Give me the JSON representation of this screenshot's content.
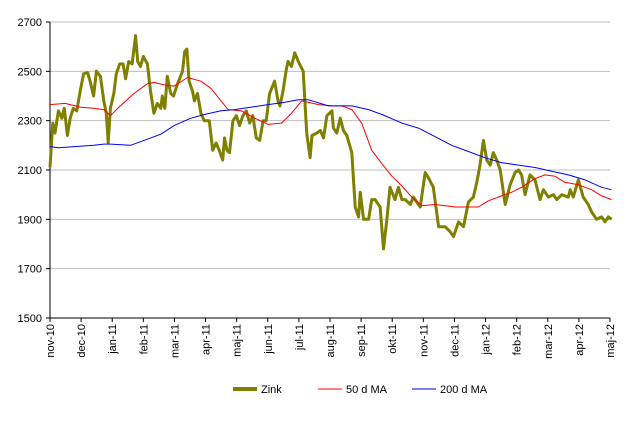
{
  "chart_data": {
    "type": "line",
    "title": "",
    "xlabel": "",
    "ylabel": "",
    "ylim": [
      1500,
      2700
    ],
    "yticks": [
      1500,
      1700,
      1900,
      2100,
      2300,
      2500,
      2700
    ],
    "grid": "horizontal",
    "legend_position": "bottom",
    "x_unit": "month index (0 = nov-10)",
    "categories": [
      "nov-10",
      "dec-10",
      "jan-11",
      "feb-11",
      "mar-11",
      "apr-11",
      "maj-11",
      "jun-11",
      "jul-11",
      "aug-11",
      "sep-11",
      "okt-11",
      "nov-11",
      "dec-11",
      "jan-12",
      "feb-12",
      "mar-12",
      "apr-12",
      "maj-12"
    ],
    "series": [
      {
        "name": "Zink",
        "color": "#808000",
        "points": [
          [
            0,
            2110
          ],
          [
            0.09,
            2290
          ],
          [
            0.16,
            2250
          ],
          [
            0.27,
            2340
          ],
          [
            0.38,
            2310
          ],
          [
            0.46,
            2350
          ],
          [
            0.56,
            2240
          ],
          [
            0.65,
            2310
          ],
          [
            0.75,
            2350
          ],
          [
            0.86,
            2340
          ],
          [
            0.97,
            2420
          ],
          [
            1.08,
            2490
          ],
          [
            1.21,
            2495
          ],
          [
            1.29,
            2460
          ],
          [
            1.4,
            2400
          ],
          [
            1.49,
            2500
          ],
          [
            1.62,
            2480
          ],
          [
            1.73,
            2380
          ],
          [
            1.81,
            2330
          ],
          [
            1.87,
            2210
          ],
          [
            1.94,
            2350
          ],
          [
            2.05,
            2410
          ],
          [
            2.13,
            2490
          ],
          [
            2.24,
            2530
          ],
          [
            2.35,
            2530
          ],
          [
            2.43,
            2470
          ],
          [
            2.53,
            2540
          ],
          [
            2.64,
            2530
          ],
          [
            2.75,
            2645
          ],
          [
            2.82,
            2540
          ],
          [
            2.91,
            2520
          ],
          [
            3.0,
            2560
          ],
          [
            3.13,
            2530
          ],
          [
            3.23,
            2420
          ],
          [
            3.34,
            2330
          ],
          [
            3.45,
            2370
          ],
          [
            3.56,
            2350
          ],
          [
            3.61,
            2400
          ],
          [
            3.69,
            2350
          ],
          [
            3.77,
            2480
          ],
          [
            3.88,
            2410
          ],
          [
            3.97,
            2400
          ],
          [
            4.1,
            2450
          ],
          [
            4.26,
            2500
          ],
          [
            4.33,
            2580
          ],
          [
            4.4,
            2590
          ],
          [
            4.47,
            2460
          ],
          [
            4.58,
            2420
          ],
          [
            4.64,
            2380
          ],
          [
            4.74,
            2410
          ],
          [
            4.85,
            2330
          ],
          [
            4.96,
            2300
          ],
          [
            5.12,
            2300
          ],
          [
            5.23,
            2180
          ],
          [
            5.34,
            2210
          ],
          [
            5.44,
            2180
          ],
          [
            5.55,
            2140
          ],
          [
            5.61,
            2230
          ],
          [
            5.69,
            2180
          ],
          [
            5.77,
            2170
          ],
          [
            5.88,
            2300
          ],
          [
            5.99,
            2320
          ],
          [
            6.09,
            2280
          ],
          [
            6.2,
            2320
          ],
          [
            6.31,
            2340
          ],
          [
            6.42,
            2290
          ],
          [
            6.52,
            2320
          ],
          [
            6.63,
            2230
          ],
          [
            6.74,
            2220
          ],
          [
            6.85,
            2300
          ],
          [
            6.95,
            2300
          ],
          [
            7.06,
            2410
          ],
          [
            7.22,
            2460
          ],
          [
            7.33,
            2380
          ],
          [
            7.39,
            2360
          ],
          [
            7.49,
            2420
          ],
          [
            7.6,
            2510
          ],
          [
            7.65,
            2540
          ],
          [
            7.76,
            2520
          ],
          [
            7.87,
            2575
          ],
          [
            7.98,
            2540
          ],
          [
            8.14,
            2500
          ],
          [
            8.25,
            2250
          ],
          [
            8.36,
            2150
          ],
          [
            8.42,
            2240
          ],
          [
            8.58,
            2250
          ],
          [
            8.69,
            2260
          ],
          [
            8.79,
            2230
          ],
          [
            8.9,
            2320
          ],
          [
            9.06,
            2340
          ],
          [
            9.11,
            2270
          ],
          [
            9.22,
            2250
          ],
          [
            9.33,
            2310
          ],
          [
            9.43,
            2260
          ],
          [
            9.54,
            2240
          ],
          [
            9.7,
            2170
          ],
          [
            9.81,
            1950
          ],
          [
            9.92,
            1910
          ],
          [
            9.97,
            2010
          ],
          [
            10.08,
            1900
          ],
          [
            10.24,
            1900
          ],
          [
            10.34,
            1980
          ],
          [
            10.45,
            1980
          ],
          [
            10.61,
            1950
          ],
          [
            10.72,
            1780
          ],
          [
            10.83,
            1900
          ],
          [
            10.93,
            2030
          ],
          [
            11.09,
            1980
          ],
          [
            11.2,
            2030
          ],
          [
            11.31,
            1980
          ],
          [
            11.42,
            1980
          ],
          [
            11.58,
            1960
          ],
          [
            11.68,
            1990
          ],
          [
            11.79,
            1970
          ],
          [
            11.9,
            1950
          ],
          [
            12.06,
            2090
          ],
          [
            12.16,
            2070
          ],
          [
            12.32,
            2030
          ],
          [
            12.49,
            1870
          ],
          [
            12.7,
            1870
          ],
          [
            12.86,
            1850
          ],
          [
            12.97,
            1830
          ],
          [
            13.13,
            1890
          ],
          [
            13.29,
            1870
          ],
          [
            13.45,
            1970
          ],
          [
            13.61,
            1990
          ],
          [
            13.72,
            2050
          ],
          [
            13.82,
            2120
          ],
          [
            13.93,
            2220
          ],
          [
            14.04,
            2140
          ],
          [
            14.15,
            2120
          ],
          [
            14.25,
            2170
          ],
          [
            14.36,
            2140
          ],
          [
            14.47,
            2100
          ],
          [
            14.63,
            1960
          ],
          [
            14.79,
            2040
          ],
          [
            14.95,
            2090
          ],
          [
            15.06,
            2100
          ],
          [
            15.16,
            2080
          ],
          [
            15.27,
            2000
          ],
          [
            15.43,
            2080
          ],
          [
            15.59,
            2060
          ],
          [
            15.75,
            1980
          ],
          [
            15.86,
            2020
          ],
          [
            16.02,
            1990
          ],
          [
            16.18,
            2000
          ],
          [
            16.29,
            1980
          ],
          [
            16.45,
            2000
          ],
          [
            16.66,
            1990
          ],
          [
            16.72,
            2020
          ],
          [
            16.82,
            1990
          ],
          [
            16.98,
            2060
          ],
          [
            17.14,
            1990
          ],
          [
            17.3,
            1960
          ],
          [
            17.41,
            1930
          ],
          [
            17.57,
            1900
          ],
          [
            17.73,
            1910
          ],
          [
            17.84,
            1890
          ],
          [
            17.95,
            1910
          ],
          [
            18.05,
            1900
          ]
        ]
      },
      {
        "name": "50 d MA",
        "color": "#ff0000",
        "points": [
          [
            0,
            2365
          ],
          [
            0.49,
            2370
          ],
          [
            0.97,
            2355
          ],
          [
            1.4,
            2350
          ],
          [
            1.73,
            2345
          ],
          [
            1.94,
            2320
          ],
          [
            2.26,
            2360
          ],
          [
            2.7,
            2410
          ],
          [
            3.13,
            2450
          ],
          [
            3.34,
            2455
          ],
          [
            3.67,
            2445
          ],
          [
            3.99,
            2440
          ],
          [
            4.42,
            2475
          ],
          [
            4.85,
            2460
          ],
          [
            5.18,
            2430
          ],
          [
            5.5,
            2380
          ],
          [
            5.72,
            2345
          ],
          [
            6.15,
            2340
          ],
          [
            6.58,
            2310
          ],
          [
            7.01,
            2285
          ],
          [
            7.44,
            2290
          ],
          [
            7.76,
            2330
          ],
          [
            8.09,
            2380
          ],
          [
            8.63,
            2365
          ],
          [
            9.06,
            2360
          ],
          [
            9.38,
            2360
          ],
          [
            9.7,
            2345
          ],
          [
            10.02,
            2290
          ],
          [
            10.34,
            2180
          ],
          [
            10.67,
            2125
          ],
          [
            10.99,
            2075
          ],
          [
            11.31,
            2035
          ],
          [
            11.63,
            1990
          ],
          [
            11.95,
            1955
          ],
          [
            12.38,
            1960
          ],
          [
            12.7,
            1955
          ],
          [
            13.02,
            1950
          ],
          [
            13.34,
            1950
          ],
          [
            13.77,
            1950
          ],
          [
            14.09,
            1975
          ],
          [
            14.51,
            1995
          ],
          [
            14.84,
            2010
          ],
          [
            15.16,
            2030
          ],
          [
            15.59,
            2065
          ],
          [
            15.91,
            2080
          ],
          [
            16.23,
            2075
          ],
          [
            16.55,
            2050
          ],
          [
            16.98,
            2040
          ],
          [
            17.41,
            2020
          ],
          [
            17.73,
            1995
          ],
          [
            18.05,
            1980
          ]
        ]
      },
      {
        "name": "200 d MA",
        "color": "#0000ff",
        "points": [
          [
            0,
            2195
          ],
          [
            0.27,
            2190
          ],
          [
            1.4,
            2200
          ],
          [
            1.73,
            2205
          ],
          [
            1.94,
            2205
          ],
          [
            2.59,
            2200
          ],
          [
            3.13,
            2225
          ],
          [
            3.56,
            2245
          ],
          [
            3.99,
            2280
          ],
          [
            4.53,
            2310
          ],
          [
            4.96,
            2325
          ],
          [
            5.5,
            2340
          ],
          [
            5.93,
            2345
          ],
          [
            6.47,
            2355
          ],
          [
            7.01,
            2365
          ],
          [
            7.55,
            2375
          ],
          [
            7.98,
            2385
          ],
          [
            8.3,
            2385
          ],
          [
            8.95,
            2360
          ],
          [
            9.7,
            2360
          ],
          [
            10.24,
            2345
          ],
          [
            10.67,
            2325
          ],
          [
            11.31,
            2290
          ],
          [
            11.84,
            2270
          ],
          [
            12.38,
            2235
          ],
          [
            12.91,
            2200
          ],
          [
            13.45,
            2175
          ],
          [
            13.98,
            2150
          ],
          [
            14.51,
            2130
          ],
          [
            15.06,
            2120
          ],
          [
            15.59,
            2110
          ],
          [
            16.13,
            2095
          ],
          [
            16.66,
            2080
          ],
          [
            17.2,
            2060
          ],
          [
            17.73,
            2030
          ],
          [
            18.05,
            2020
          ]
        ]
      }
    ]
  }
}
